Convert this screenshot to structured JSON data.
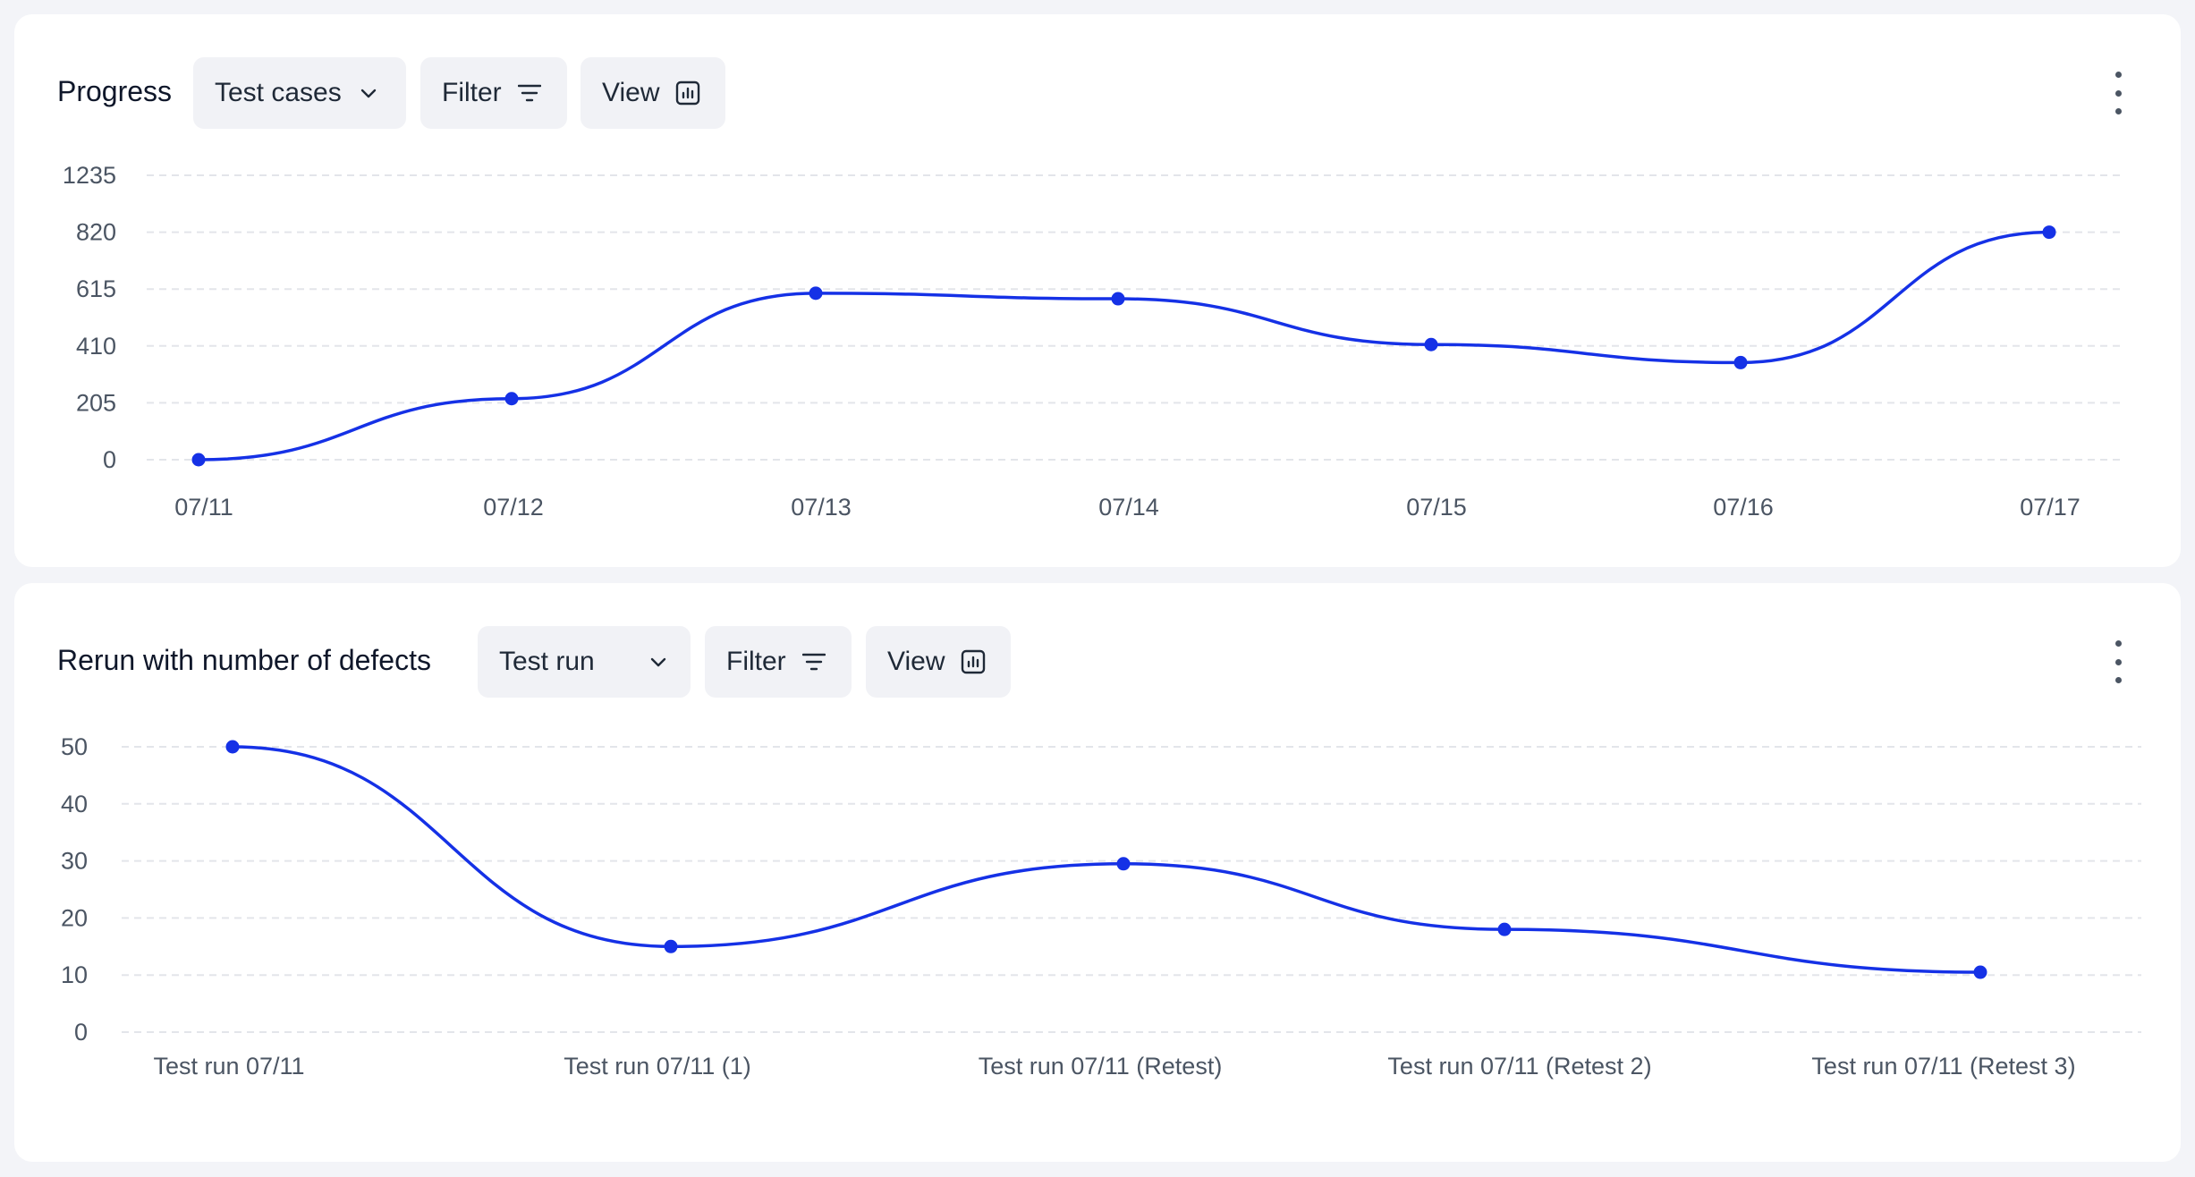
{
  "progress_card": {
    "title": "Progress",
    "dropdown_label": "Test cases",
    "filter_label": "Filter",
    "view_label": "View"
  },
  "defects_card": {
    "title": "Rerun with number of defects",
    "dropdown_label": "Test run",
    "filter_label": "Filter",
    "view_label": "View"
  },
  "colors": {
    "line": "#1531e6",
    "grid": "#e3e5ea",
    "tick_text": "#4b5563"
  },
  "chart_data": [
    {
      "type": "line",
      "categories": [
        "07/11",
        "07/12",
        "07/13",
        "07/14",
        "07/15",
        "07/16",
        "07/17"
      ],
      "values": [
        0,
        220,
        600,
        580,
        415,
        350,
        820
      ],
      "y_ticks": [
        0,
        205,
        410,
        615,
        820,
        1235
      ],
      "ylim": [
        0,
        1235
      ],
      "grid": true,
      "smooth": true
    },
    {
      "type": "line",
      "categories": [
        "Test run 07/11",
        "Test run 07/11 (1)",
        "Test run 07/11 (Retest)",
        "Test run 07/11 (Retest 2)",
        "Test run 07/11 (Retest 3)"
      ],
      "values": [
        50,
        15,
        29.5,
        18,
        10.5
      ],
      "y_ticks": [
        0,
        10,
        20,
        30,
        40,
        50
      ],
      "ylim": [
        0,
        50
      ],
      "grid": true,
      "smooth": true
    }
  ]
}
